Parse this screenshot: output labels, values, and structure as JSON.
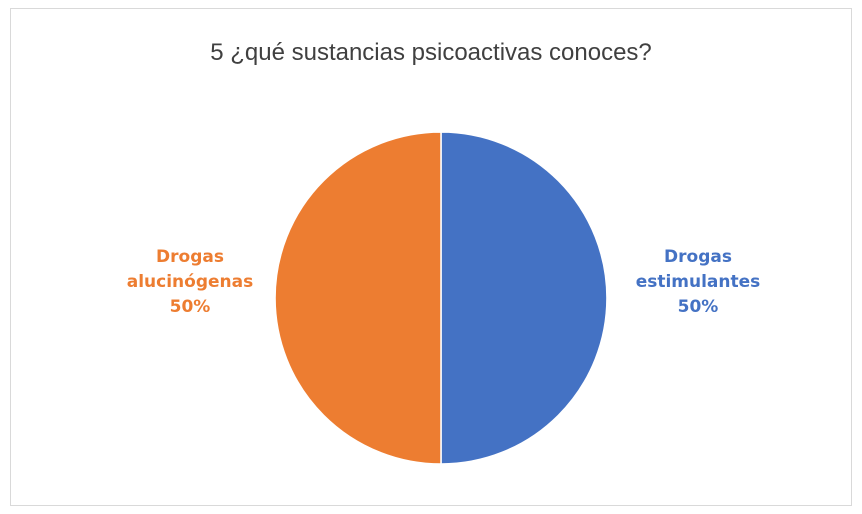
{
  "chart_data": {
    "type": "pie",
    "title": "5 ¿qué sustancias psicoactivas conoces?",
    "slices": [
      {
        "label_line1": "Drogas",
        "label_line2": "estimulantes",
        "value": 50,
        "percent_label": "50%",
        "color": "#4472c4"
      },
      {
        "label_line1": "Drogas",
        "label_line2": "alucinógenas",
        "value": 50,
        "percent_label": "50%",
        "color": "#ed7d31"
      }
    ],
    "legend": "none"
  }
}
